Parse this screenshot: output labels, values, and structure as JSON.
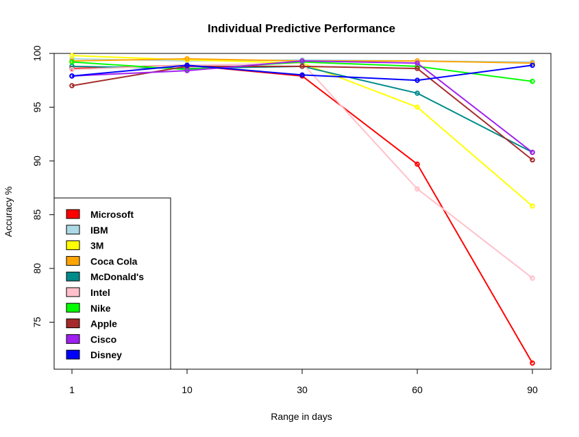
{
  "chart_data": {
    "type": "line",
    "title": "Individual Predictive Performance",
    "xlabel": "Range in days",
    "ylabel": "Accuracy %",
    "categories": [
      "1",
      "10",
      "30",
      "60",
      "90"
    ],
    "y_ticks": [
      75,
      80,
      85,
      90,
      95,
      100
    ],
    "ylim": [
      70.5,
      100
    ],
    "grid": false,
    "legend_position": "bottom-left",
    "series": [
      {
        "name": "Microsoft",
        "color": "#ff0000",
        "values": [
          98.6,
          98.9,
          97.9,
          89.7,
          71.2
        ]
      },
      {
        "name": "IBM",
        "color": "#add8e6",
        "values": [
          99.5,
          99.3,
          99.4,
          99.3,
          99.2
        ]
      },
      {
        "name": "3M",
        "color": "#ffff00",
        "values": [
          99.8,
          99.4,
          99.1,
          95.0,
          85.8
        ]
      },
      {
        "name": "Coca Cola",
        "color": "#ffa500",
        "values": [
          99.3,
          99.5,
          99.3,
          99.3,
          99.1
        ]
      },
      {
        "name": "McDonald's",
        "color": "#008b8b",
        "values": [
          98.8,
          98.6,
          98.8,
          96.3,
          90.8
        ]
      },
      {
        "name": "Intel",
        "color": "#ffc0cb",
        "values": [
          98.5,
          98.9,
          99.1,
          87.4,
          79.1
        ]
      },
      {
        "name": "Nike",
        "color": "#00ff00",
        "values": [
          99.2,
          98.5,
          99.2,
          98.8,
          97.4
        ]
      },
      {
        "name": "Apple",
        "color": "#a52a2a",
        "values": [
          97.0,
          98.8,
          98.8,
          98.6,
          90.1
        ]
      },
      {
        "name": "Cisco",
        "color": "#a020f0",
        "values": [
          97.9,
          98.4,
          99.3,
          99.1,
          90.8
        ]
      },
      {
        "name": "Disney",
        "color": "#0000ff",
        "values": [
          97.9,
          98.9,
          98.0,
          97.5,
          98.9
        ]
      }
    ]
  }
}
